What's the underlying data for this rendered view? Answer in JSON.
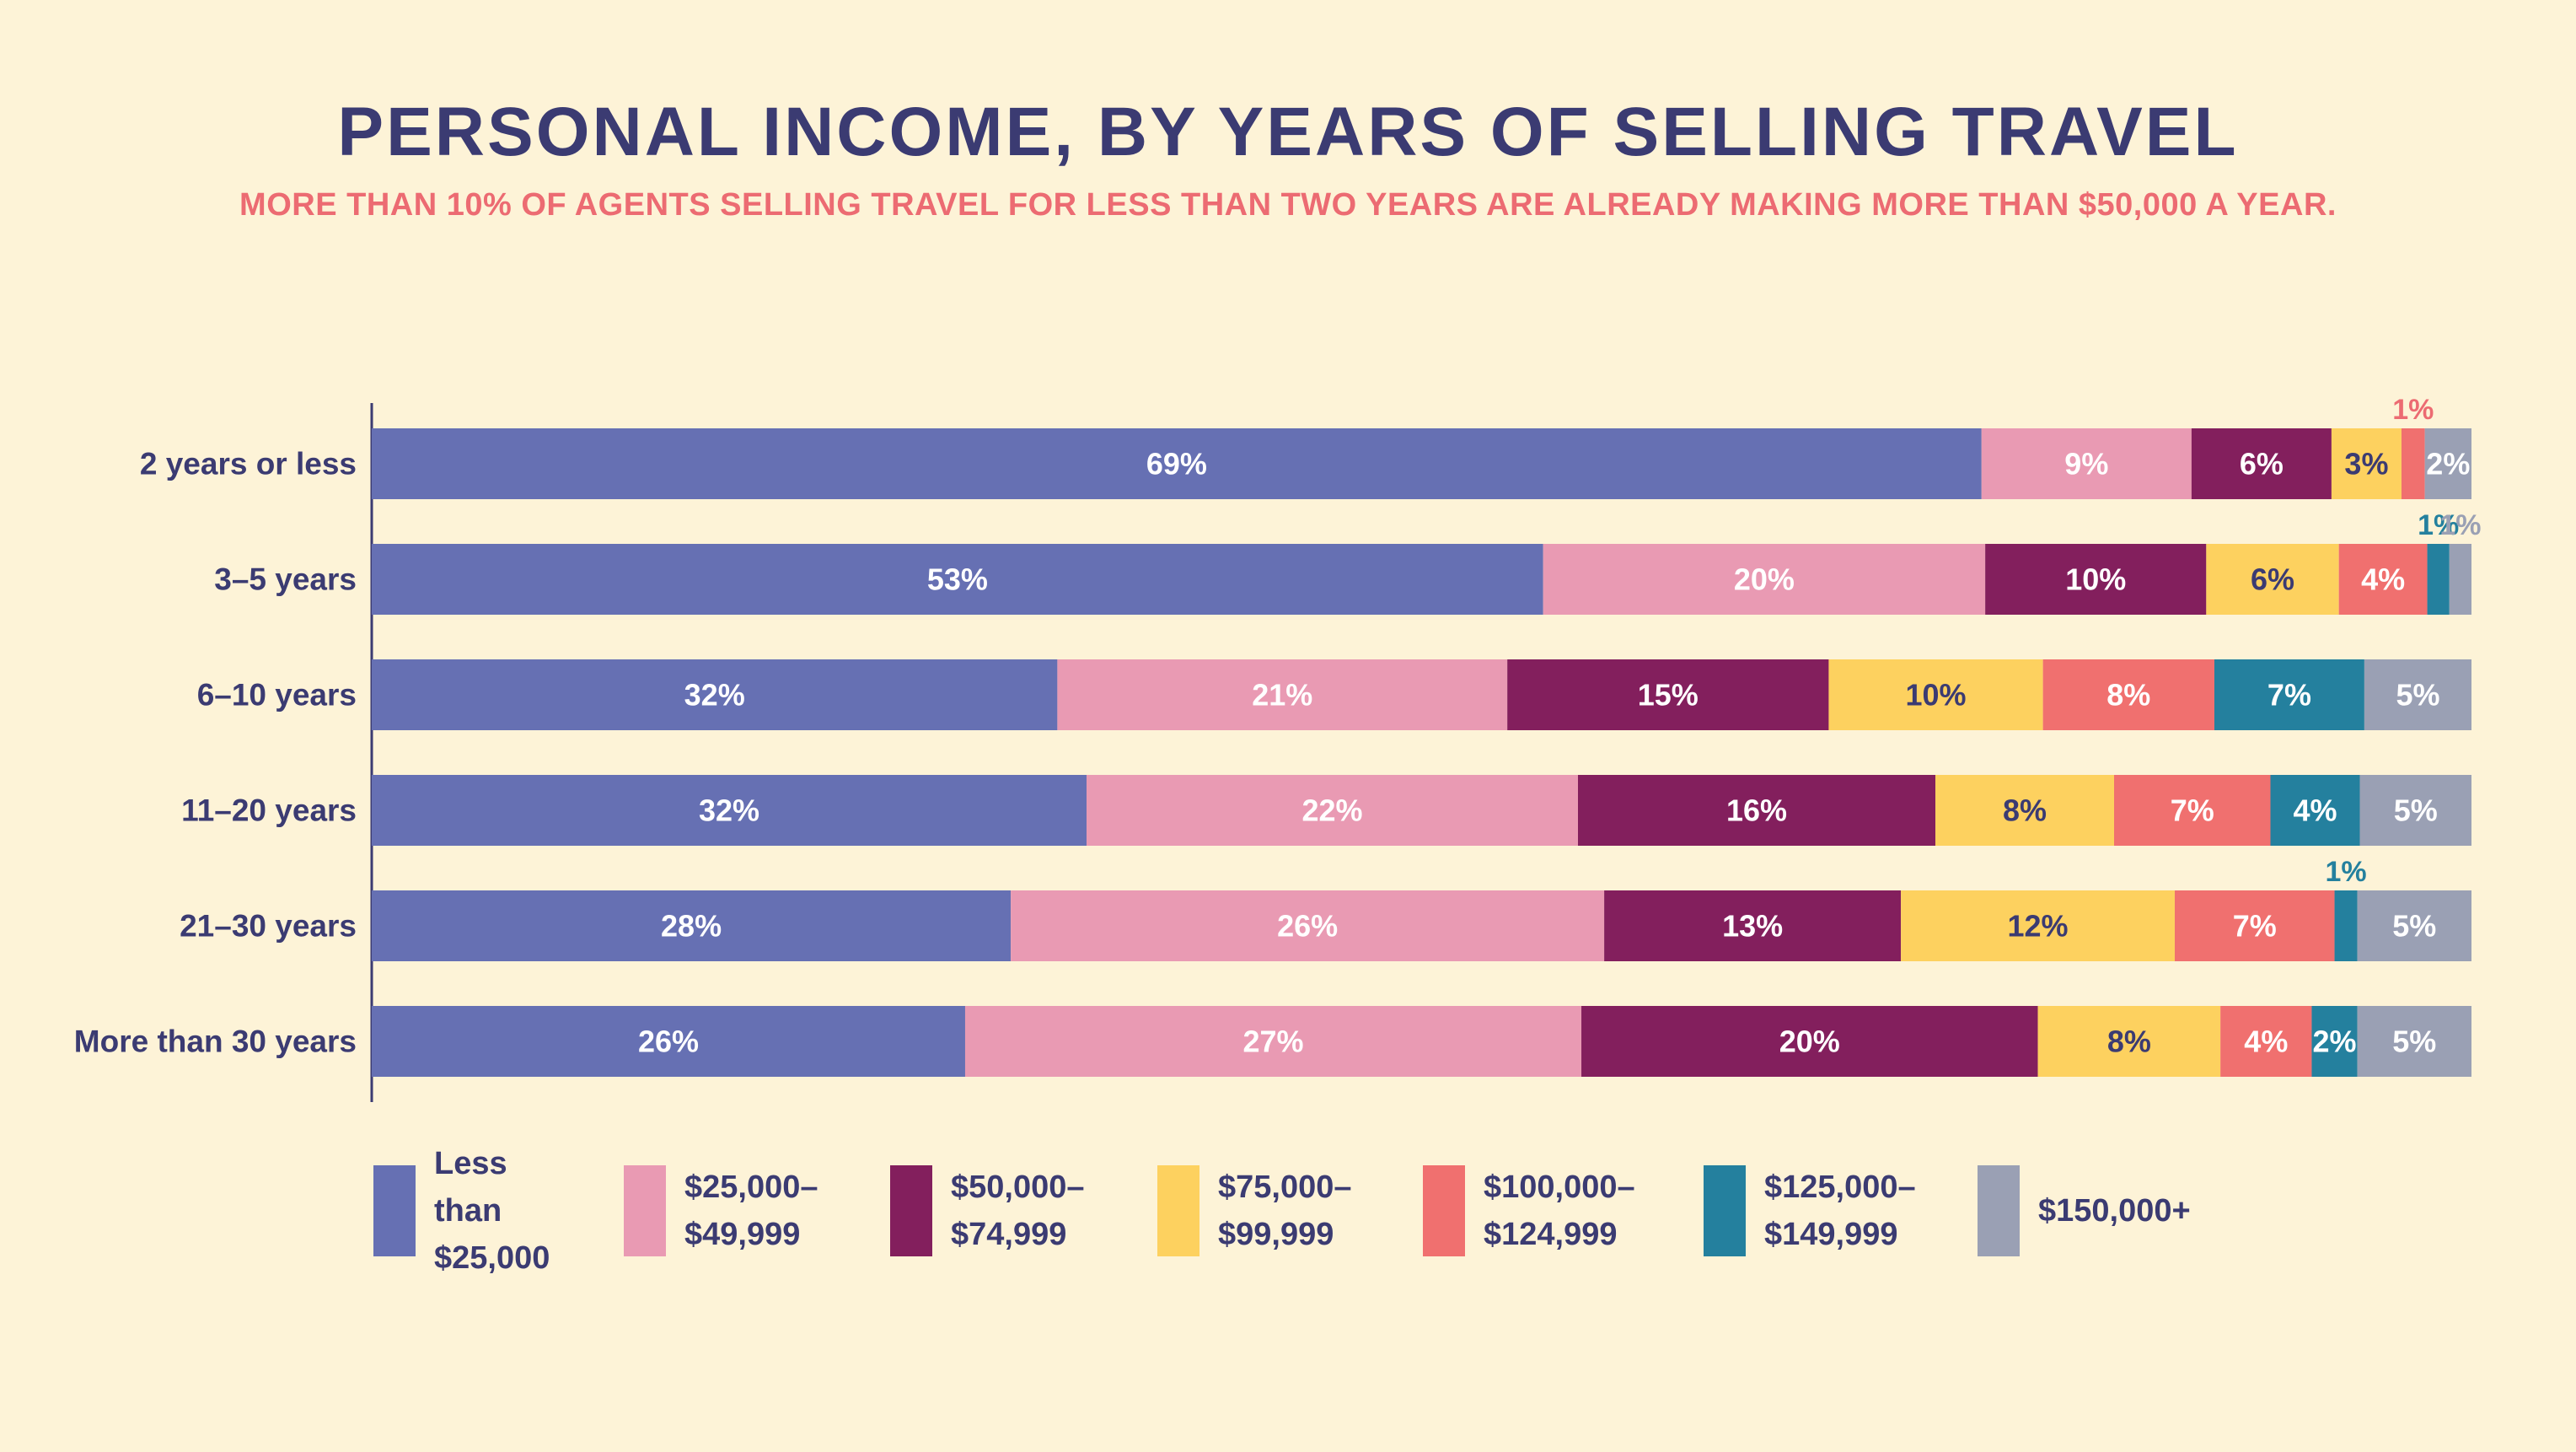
{
  "title": "PERSONAL INCOME, BY YEARS OF SELLING TRAVEL",
  "subtitle": "MORE THAN 10% OF AGENTS SELLING TRAVEL FOR LESS THAN TWO YEARS ARE ALREADY MAKING MORE THAN $50,000 A YEAR.",
  "chart_data": {
    "type": "bar",
    "orientation": "horizontal",
    "stacked": true,
    "unit": "%",
    "categories": [
      "2 years or less",
      "3–5 years",
      "6–10 years",
      "11–20 years",
      "21–30 years",
      "More than 30 years"
    ],
    "series": [
      {
        "name": "Less than $25,000",
        "color": "#6670b3",
        "label_color": "#ffffff",
        "values": [
          69,
          53,
          32,
          32,
          28,
          26
        ]
      },
      {
        "name": "$25,000–$49,999",
        "color": "#e99ab3",
        "label_color": "#ffffff",
        "values": [
          9,
          20,
          21,
          22,
          26,
          27
        ]
      },
      {
        "name": "$50,000–$74,999",
        "color": "#831f5d",
        "label_color": "#ffffff",
        "values": [
          6,
          10,
          15,
          16,
          13,
          20
        ]
      },
      {
        "name": "$75,000–$99,999",
        "color": "#fdd15f",
        "label_color": "#3b3b72",
        "values": [
          3,
          6,
          10,
          8,
          12,
          8
        ]
      },
      {
        "name": "$100,000–$124,999",
        "color": "#f0706f",
        "label_color": "#ffffff",
        "values": [
          1,
          4,
          8,
          7,
          7,
          4
        ]
      },
      {
        "name": "$125,000–$149,999",
        "color": "#24809e",
        "label_color": "#ffffff",
        "values": [
          0,
          1,
          7,
          4,
          1,
          2
        ]
      },
      {
        "name": "$150,000+",
        "color": "#9aa0b4",
        "label_color": "#ffffff",
        "values": [
          2,
          1,
          5,
          5,
          5,
          5
        ]
      }
    ],
    "outside_labels": [
      {
        "category": "2 years or less",
        "series": "$100,000–$124,999",
        "text": "1%",
        "color": "#ec6b72"
      },
      {
        "category": "3–5 years",
        "series": "$125,000–$149,999",
        "text": "1%",
        "color": "#24809e"
      },
      {
        "category": "3–5 years",
        "series": "$150,000+",
        "text": "1%",
        "color": "#9aa0b4"
      },
      {
        "category": "21–30 years",
        "series": "$125,000–$149,999",
        "text": "1%",
        "color": "#24809e"
      }
    ],
    "legend_position": "bottom",
    "grid": false
  },
  "legend": [
    {
      "label": "Less than\n$25,000",
      "color": "#6670b3"
    },
    {
      "label": "$25,000–\n$49,999",
      "color": "#e99ab3"
    },
    {
      "label": "$50,000–\n$74,999",
      "color": "#831f5d"
    },
    {
      "label": "$75,000–\n$99,999",
      "color": "#fdd15f"
    },
    {
      "label": "$100,000–\n$124,999",
      "color": "#f0706f"
    },
    {
      "label": "$125,000–\n$149,999",
      "color": "#24809e"
    },
    {
      "label": "$150,000+",
      "color": "#9aa0b4"
    }
  ]
}
